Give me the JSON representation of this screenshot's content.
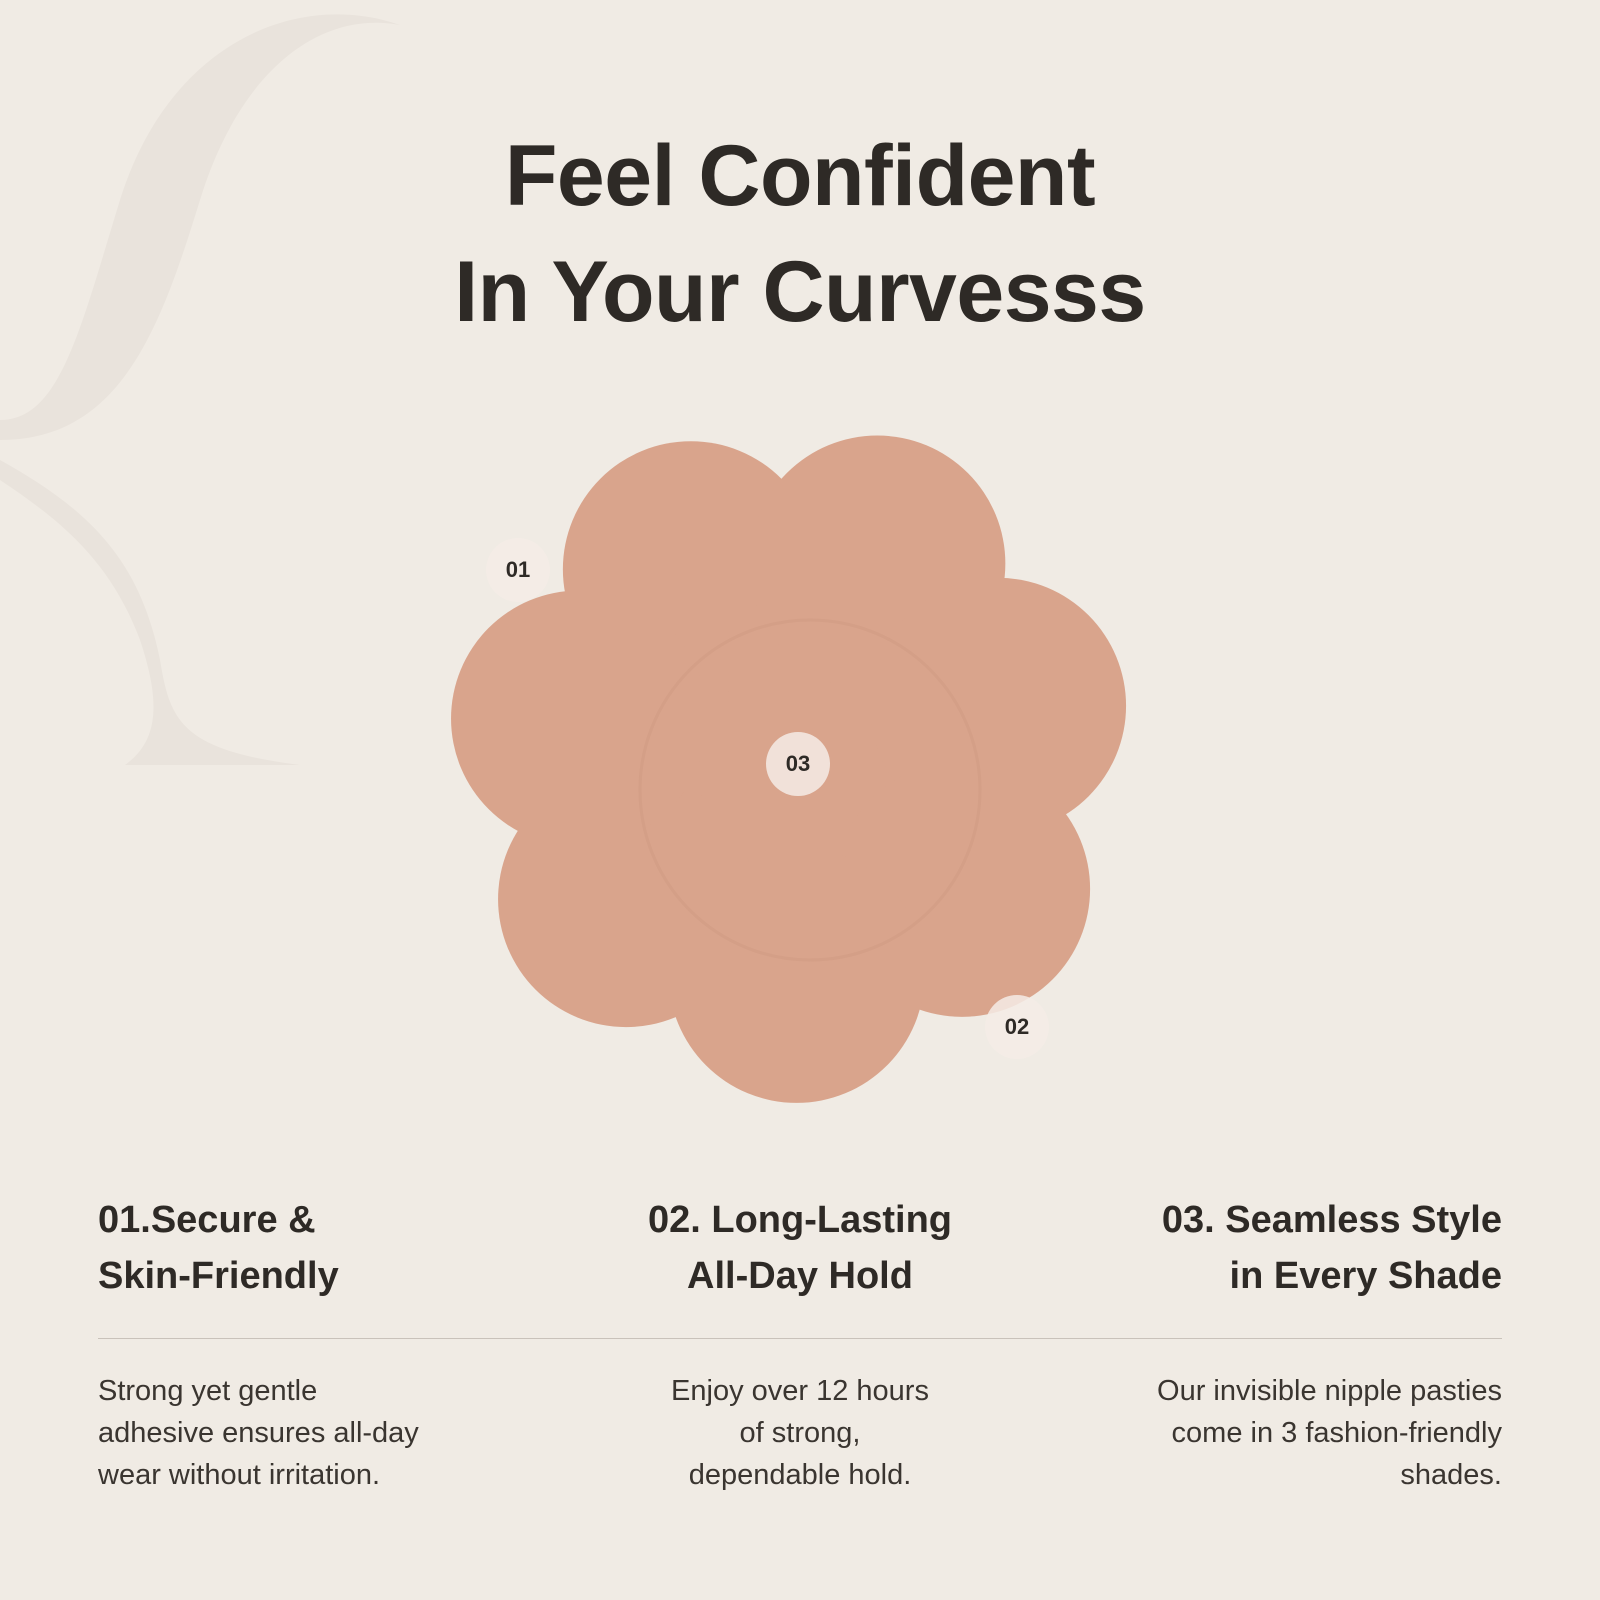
{
  "headline": {
    "line1": "Feel Confident",
    "line2": "In Your Curvesss"
  },
  "colors": {
    "background": "#f0ebe4",
    "product": "#d9a48c",
    "text": "#2e2a26"
  },
  "product_image": {
    "type": "flower-shaped nipple pasty",
    "markers": [
      "01",
      "02",
      "03"
    ]
  },
  "features": [
    {
      "title_line1": "01.Secure &",
      "title_line2": "Skin-Friendly",
      "desc": [
        "Strong yet gentle",
        "adhesive ensures all-day",
        "wear without irritation."
      ]
    },
    {
      "title_line1": "02. Long-Lasting",
      "title_line2": "All-Day Hold",
      "desc": [
        "Enjoy over 12 hours",
        "of strong,",
        "dependable hold."
      ]
    },
    {
      "title_line1": "03. Seamless Style",
      "title_line2": "in Every Shade",
      "desc": [
        "Our invisible nipple pasties",
        "come in 3 fashion-friendly",
        "shades."
      ]
    }
  ]
}
